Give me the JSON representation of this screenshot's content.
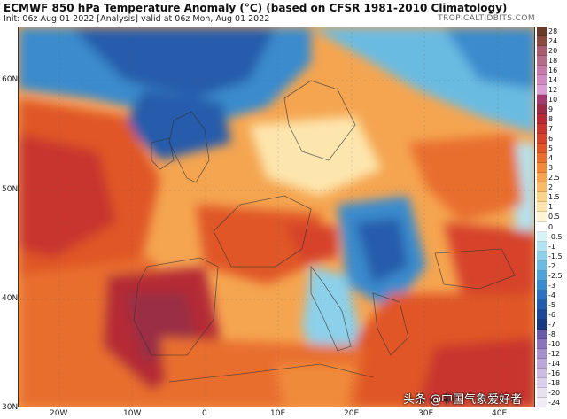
{
  "header": {
    "title": "ECMWF 850 hPa Temperature Anomaly (°C) (based on CFSR 1981-2010 Climatology)",
    "subtitle": "Init: 06z Aug 01 2022   [Analysis]   valid at 06z Mon, Aug 01 2022",
    "brand": "TROPICALTIDBITS.COM"
  },
  "axes": {
    "lat_labels": [
      "60N",
      "50N",
      "40N",
      "30N"
    ],
    "lon_labels": [
      "20W",
      "10W",
      "0",
      "10E",
      "20E",
      "30E",
      "40E"
    ]
  },
  "legend": {
    "entries": [
      {
        "label": "28",
        "color": "#6b3b2a"
      },
      {
        "label": "24",
        "color": "#8a4a3f"
      },
      {
        "label": "20",
        "color": "#a65c6e"
      },
      {
        "label": "18",
        "color": "#b56b8a"
      },
      {
        "label": "16",
        "color": "#c47ba5"
      },
      {
        "label": "14",
        "color": "#d08cbf"
      },
      {
        "label": "12",
        "color": "#db9fd3"
      },
      {
        "label": "10",
        "color": "#a23b6e"
      },
      {
        "label": "9",
        "color": "#9a2d45"
      },
      {
        "label": "8",
        "color": "#b52b35"
      },
      {
        "label": "7",
        "color": "#c8342f"
      },
      {
        "label": "6",
        "color": "#d6422a"
      },
      {
        "label": "5",
        "color": "#e05628"
      },
      {
        "label": "4",
        "color": "#e86e2e"
      },
      {
        "label": "3",
        "color": "#f08a3a"
      },
      {
        "label": "2.5",
        "color": "#f5a550"
      },
      {
        "label": "2",
        "color": "#f8bc68"
      },
      {
        "label": "1.5",
        "color": "#fbd387"
      },
      {
        "label": "1",
        "color": "#fde6ae"
      },
      {
        "label": "0.5",
        "color": "#fff4d6"
      },
      {
        "label": "0",
        "color": "#ffffff"
      },
      {
        "label": "-0.5",
        "color": "#d9f2f7"
      },
      {
        "label": "-1",
        "color": "#b4e3f0"
      },
      {
        "label": "-1.5",
        "color": "#8cd0ea"
      },
      {
        "label": "-2",
        "color": "#6bbbe2"
      },
      {
        "label": "-2.5",
        "color": "#4fa3d8"
      },
      {
        "label": "-3",
        "color": "#3a8bcd"
      },
      {
        "label": "-4",
        "color": "#2e72bf"
      },
      {
        "label": "-5",
        "color": "#255bab"
      },
      {
        "label": "-6",
        "color": "#1e4896"
      },
      {
        "label": "-7",
        "color": "#193a80"
      },
      {
        "label": "-8",
        "color": "#6a5aa8"
      },
      {
        "label": "-10",
        "color": "#8a74bc"
      },
      {
        "label": "-12",
        "color": "#a690cc"
      },
      {
        "label": "-14",
        "color": "#bba8d8"
      },
      {
        "label": "-16",
        "color": "#cdbde2"
      },
      {
        "label": "-18",
        "color": "#ddd0ea"
      },
      {
        "label": "-20",
        "color": "#e9e0f0"
      },
      {
        "label": "-24",
        "color": "#f2ecf6"
      }
    ]
  },
  "watermark": "头条 @中国气象爱好者"
}
